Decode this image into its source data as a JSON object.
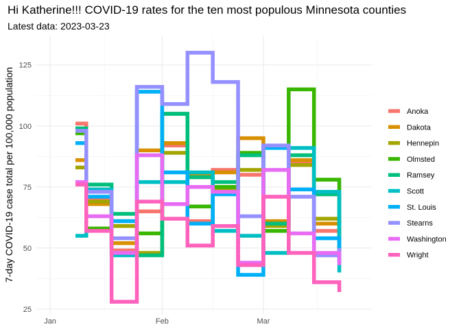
{
  "chart_data": {
    "type": "line",
    "title": "Hi Katherine!!! COVID-19 rates for the ten most populous Minnesota counties",
    "subtitle": "Latest data: 2023-03-23",
    "xlabel": "",
    "ylabel": "7-day COVID-19 case total per 100,000 population",
    "xlim": [
      "2022-12-28",
      "2023-03-31"
    ],
    "ylim": [
      23,
      137
    ],
    "x_ticks": [
      "2023-01-01",
      "2023-02-01",
      "2023-03-01"
    ],
    "x_tick_labels": [
      "Jan",
      "Feb",
      "Mar"
    ],
    "y_ticks": [
      25,
      50,
      75,
      100,
      125
    ],
    "grid": true,
    "legend_position": "right",
    "step": "horizontal-then-vertical",
    "x": [
      "2023-01-08",
      "2023-01-11",
      "2023-01-18",
      "2023-01-25",
      "2023-02-01",
      "2023-02-08",
      "2023-02-15",
      "2023-02-22",
      "2023-03-01",
      "2023-03-08",
      "2023-03-15",
      "2023-03-22"
    ],
    "series": [
      {
        "name": "Anoka",
        "color": "#F8766D",
        "values": [
          101,
          70,
          49,
          65,
          92,
          61,
          82,
          80,
          60,
          85,
          57,
          45
        ]
      },
      {
        "name": "Dakota",
        "color": "#D89000",
        "values": [
          86,
          68,
          52,
          90,
          93,
          80,
          81,
          95,
          61,
          86,
          60,
          49
        ]
      },
      {
        "name": "Hennepin",
        "color": "#A3A500",
        "values": [
          83,
          69,
          59,
          48,
          89,
          79,
          74,
          82,
          59,
          84,
          62,
          48
        ]
      },
      {
        "name": "Olmsted",
        "color": "#39B600",
        "values": [
          97,
          58,
          61,
          56,
          105,
          67,
          75,
          89,
          57,
          115,
          78,
          57
        ]
      },
      {
        "name": "Ramsey",
        "color": "#00BF7D",
        "values": [
          99,
          76,
          64,
          47,
          105,
          79,
          77,
          88,
          60,
          88,
          72,
          50
        ]
      },
      {
        "name": "Scott",
        "color": "#00BFC4",
        "values": [
          55,
          74,
          47,
          77,
          77,
          81,
          57,
          55,
          48,
          91,
          73,
          40
        ]
      },
      {
        "name": "St. Louis",
        "color": "#00B0F6",
        "values": [
          93,
          71,
          61,
          114,
          81,
          60,
          72,
          39,
          91,
          74,
          54,
          44
        ]
      },
      {
        "name": "Stearns",
        "color": "#9590FF",
        "values": [
          98,
          73,
          54,
          116,
          109,
          130,
          118,
          63,
          92,
          71,
          47,
          50
        ]
      },
      {
        "name": "Washington",
        "color": "#E76BF3",
        "values": [
          77,
          63,
          48,
          88,
          68,
          75,
          73,
          44,
          82,
          56,
          48,
          43
        ]
      },
      {
        "name": "Wright",
        "color": "#FF62BC",
        "values": [
          76,
          57,
          28,
          69,
          62,
          51,
          59,
          43,
          71,
          48,
          36,
          32
        ]
      }
    ]
  }
}
